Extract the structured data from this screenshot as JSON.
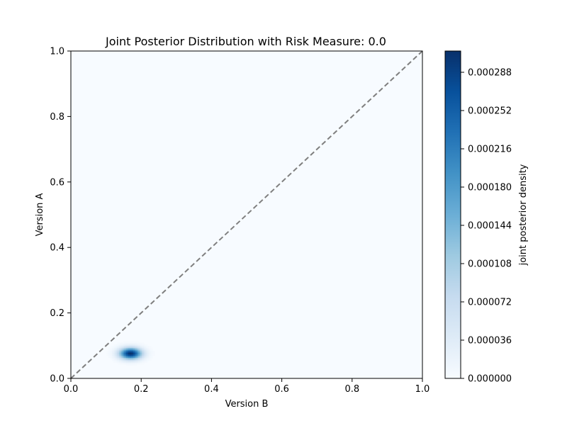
{
  "chart_data": {
    "type": "heatmap",
    "title": "Joint Posterior Distribution with Risk Measure: 0.0",
    "xlabel": "Version B",
    "ylabel": "Version A",
    "xlim": [
      0.0,
      1.0
    ],
    "ylim": [
      0.0,
      1.0
    ],
    "x_ticks": [
      "0.0",
      "0.2",
      "0.4",
      "0.6",
      "0.8",
      "1.0"
    ],
    "y_ticks": [
      "0.0",
      "0.2",
      "0.4",
      "0.6",
      "0.8",
      "1.0"
    ],
    "grid": false,
    "colormap": "Blues",
    "colormap_stops": [
      "#f7fbff",
      "#deebf7",
      "#c6dbef",
      "#9ecae1",
      "#6baed6",
      "#4292c6",
      "#2171b5",
      "#08519c",
      "#08306b"
    ],
    "density_peak": {
      "x": 0.17,
      "y": 0.077,
      "sigma_x": 0.022,
      "sigma_y": 0.012,
      "max_density": 0.000308
    },
    "reference_line": {
      "style": "dashed",
      "color": "#7f7f7f",
      "from": [
        0.0,
        0.0
      ],
      "to": [
        1.0,
        1.0
      ]
    },
    "colorbar": {
      "label": "joint posterior density",
      "min": 0.0,
      "max": 0.000308,
      "ticks": [
        "0.000000",
        "0.000036",
        "0.000072",
        "0.000108",
        "0.000144",
        "0.000180",
        "0.000216",
        "0.000252",
        "0.000288"
      ]
    }
  }
}
